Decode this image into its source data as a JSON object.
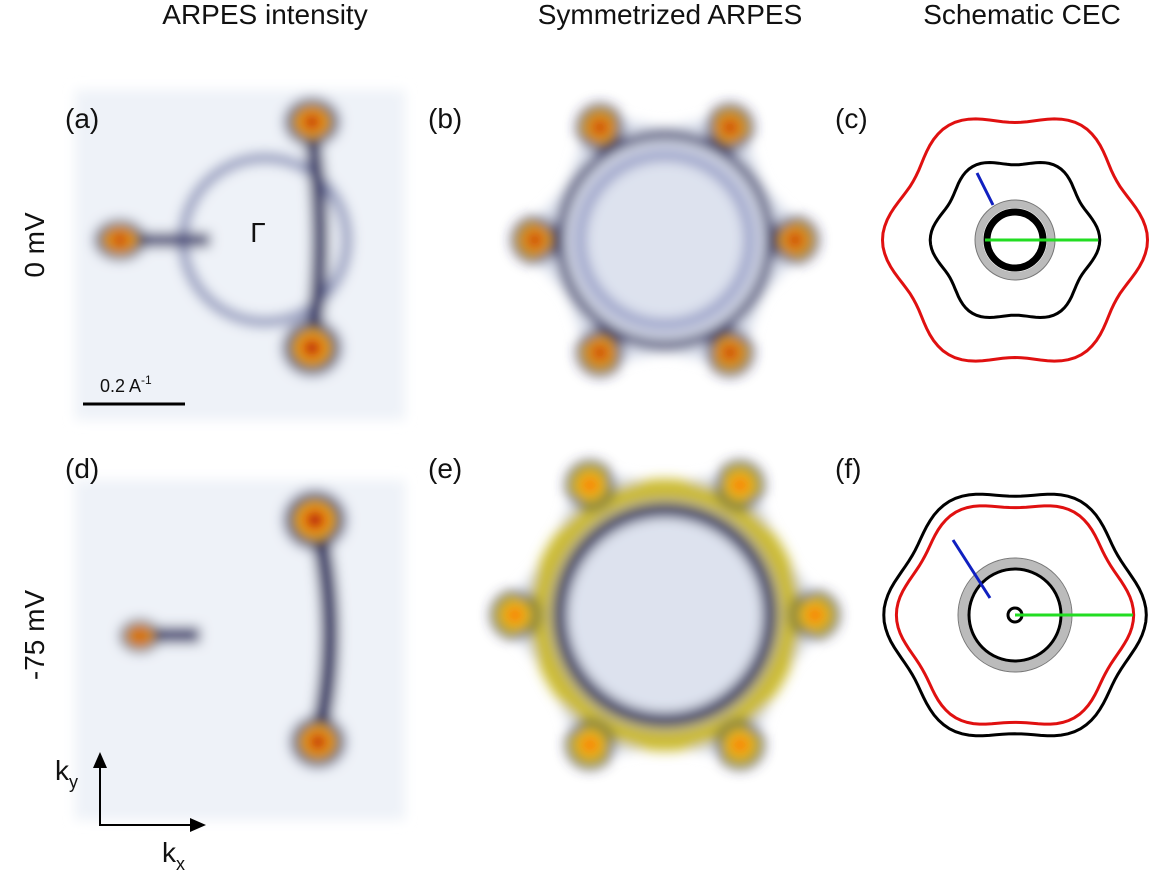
{
  "columns": [
    "ARPES intensity",
    "Symmetrized ARPES",
    "Schematic CEC"
  ],
  "rows": [
    "0 mV",
    "-75 mV"
  ],
  "panels": [
    "(a)",
    "(b)",
    "(c)",
    "(d)",
    "(e)",
    "(f)"
  ],
  "gamma_label": "Γ",
  "scale_bar": {
    "text": "0.2 A",
    "sup": "-1"
  },
  "axes": {
    "ky": {
      "base": "k",
      "sub": "y"
    },
    "kx": {
      "base": "k",
      "sub": "x"
    }
  }
}
